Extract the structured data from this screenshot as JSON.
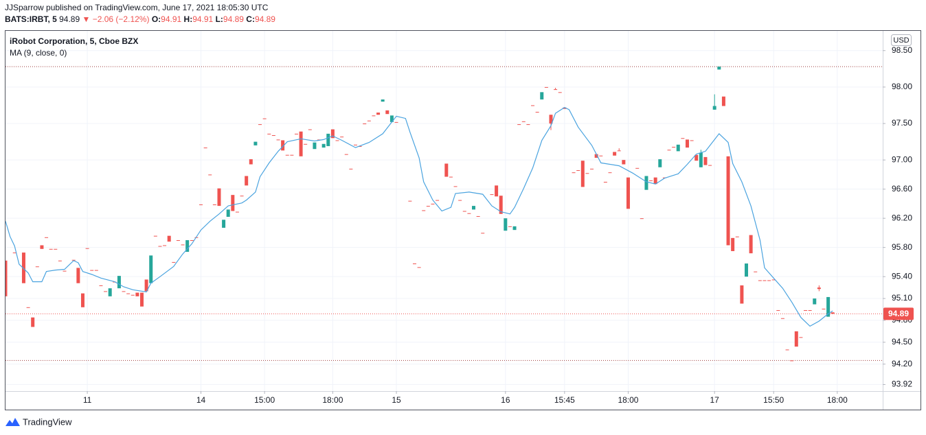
{
  "header": {
    "author": "JJSparrow",
    "published": "published on TradingView.com, June 17, 2021 18:05:30 UTC",
    "symbol": "BATS:IRBT, 5",
    "price": "94.89",
    "arrow": "▼",
    "change": "−2.06 (−2.12%)",
    "ohlc": [
      {
        "label": "O:",
        "value": "94.91"
      },
      {
        "label": "H:",
        "value": "94.91"
      },
      {
        "label": "L:",
        "value": "94.89"
      },
      {
        "label": "C:",
        "value": "94.89"
      }
    ]
  },
  "chart_data": {
    "type": "candlestick",
    "title": "iRobot Corporation, 5, Cboe BZX",
    "currency": "USD",
    "price_label": "94.89",
    "up_color": "#26a69a",
    "down_color": "#ef5350",
    "grid": true,
    "xlim": [
      0,
      193
    ],
    "ylim": [
      93.83,
      98.78
    ],
    "xticks": [
      {
        "value": 18,
        "label": "11"
      },
      {
        "value": 43,
        "label": "14"
      },
      {
        "value": 57,
        "label": "15:00"
      },
      {
        "value": 72,
        "label": "18:00"
      },
      {
        "value": 86,
        "label": "15"
      },
      {
        "value": 110,
        "label": "16"
      },
      {
        "value": 123,
        "label": "15:45"
      },
      {
        "value": 137,
        "label": "18:00"
      },
      {
        "value": 156,
        "label": "17"
      },
      {
        "value": 169,
        "label": "15:50"
      },
      {
        "value": 183,
        "label": "18:00"
      }
    ],
    "yticks": [
      93.92,
      {
        "value": 94.2,
        "label": "94.20"
      },
      {
        "value": 94.5,
        "label": "94.50"
      },
      {
        "value": 94.8,
        "label": "94.80"
      },
      {
        "value": 95.1,
        "label": "95.10"
      },
      {
        "value": 95.4,
        "label": "95.40"
      },
      {
        "value": 95.8,
        "label": "95.80"
      },
      {
        "value": 96.2,
        "label": "96.20"
      },
      {
        "value": 96.6,
        "label": "96.60"
      },
      {
        "value": 97,
        "label": "97.00"
      },
      {
        "value": 97.5,
        "label": "97.50"
      },
      {
        "value": 98,
        "label": "98.00"
      },
      {
        "value": 98.5,
        "label": "98.50"
      }
    ],
    "x": [
      0,
      2,
      4,
      5,
      6,
      7,
      8,
      9,
      10,
      11,
      12,
      13,
      15,
      16,
      17,
      18,
      19,
      20,
      21,
      22,
      23,
      24,
      25,
      26,
      27,
      28,
      29,
      30,
      31,
      32,
      33,
      34,
      35,
      36,
      37,
      38,
      39,
      40,
      41,
      42,
      43,
      44,
      45,
      46,
      47,
      48,
      49,
      50,
      51,
      52,
      53,
      54,
      55,
      56,
      57,
      58,
      59,
      60,
      61,
      62,
      63,
      64,
      65,
      66,
      67,
      68,
      69,
      70,
      71,
      72,
      73,
      74,
      75,
      76,
      77,
      78,
      79,
      80,
      81,
      82,
      83,
      84,
      85,
      86,
      89,
      90,
      91,
      92,
      93,
      94,
      95,
      97,
      98,
      99,
      100,
      101,
      102,
      103,
      104,
      105,
      107,
      108,
      109,
      110,
      111,
      112,
      113,
      114,
      115,
      116,
      117,
      118,
      119,
      120,
      121,
      122,
      123,
      125,
      126,
      127,
      128,
      129,
      130,
      131,
      132,
      133,
      134,
      135,
      136,
      137,
      139,
      140,
      141,
      142,
      143,
      144,
      145,
      146,
      147,
      148,
      149,
      150,
      151,
      152,
      153,
      154,
      155,
      156,
      157,
      158,
      159,
      160,
      161,
      162,
      163,
      164,
      165,
      166,
      167,
      168,
      169,
      170,
      171,
      172,
      173,
      174,
      175,
      176,
      177,
      178,
      179,
      180,
      181,
      182
    ],
    "open": [
      95.62,
      95.73,
      95.73,
      94.98,
      94.84,
      95.54,
      95.83,
      95.94,
      95.78,
      95.78,
      95.62,
      95.48,
      95.63,
      95.52,
      95.17,
      95.79,
      95.49,
      95.49,
      95.28,
      95.2,
      95.13,
      95.33,
      95.24,
      95.2,
      95.17,
      95.15,
      95.18,
      95.18,
      95.36,
      95.31,
      95.96,
      95.82,
      95.83,
      95.96,
      95.6,
      95.9,
      95.84,
      95.74,
      95.9,
      95.94,
      96.39,
      97.17,
      96.8,
      96.39,
      96.61,
      96.07,
      96.22,
      96.52,
      96.29,
      96.51,
      96.78,
      97.01,
      97.2,
      97.49,
      97.57,
      97.36,
      97.34,
      97.28,
      97.27,
      97.07,
      97.07,
      97.36,
      97.39,
      97.22,
      97.42,
      97.15,
      97.28,
      97.17,
      97.19,
      97.42,
      97.27,
      97.32,
      97.08,
      96.88,
      97.21,
      97.19,
      97.5,
      97.54,
      97.61,
      97.65,
      97.8,
      97.68,
      97.52,
      97.52,
      96.44,
      95.58,
      95.53,
      96.31,
      96.37,
      96.4,
      96.45,
      96.95,
      96.77,
      96.64,
      96.45,
      96.3,
      96.27,
      96.32,
      96.23,
      96.0,
      96.53,
      96.65,
      96.51,
      96.03,
      96.09,
      96.04,
      97.49,
      97.53,
      97.49,
      97.75,
      97.66,
      97.83,
      98.0,
      97.62,
      97.97,
      97.93,
      97.72,
      96.83,
      96.86,
      96.99,
      96.82,
      96.88,
      97.08,
      97.06,
      96.7,
      96.83,
      97.11,
      97.13,
      97.0,
      96.76,
      96.89,
      96.2,
      96.59,
      96.72,
      96.76,
      96.9,
      96.76,
      97.14,
      97.18,
      97.12,
      97.3,
      97.28,
      97.27,
      97.07,
      96.9,
      97.04,
      96.93,
      97.69,
      98.24,
      97.87,
      97.05,
      95.93,
      95.95,
      95.28,
      95.4,
      95.97,
      95.47,
      95.35,
      95.35,
      95.35,
      95.36,
      94.94,
      94.83,
      94.4,
      94.25,
      94.65,
      94.57,
      94.94,
      94.94,
      95.02,
      95.25,
      94.96,
      94.85,
      94.91
    ],
    "high": [
      95.62,
      95.73,
      95.73,
      94.98,
      94.84,
      95.54,
      95.83,
      95.94,
      95.78,
      95.78,
      95.62,
      95.48,
      95.63,
      95.52,
      95.17,
      95.79,
      95.49,
      95.49,
      95.28,
      95.2,
      95.24,
      95.33,
      95.41,
      95.2,
      95.17,
      95.15,
      95.18,
      95.18,
      95.36,
      95.69,
      95.96,
      95.82,
      95.83,
      95.96,
      95.6,
      95.9,
      95.84,
      95.9,
      95.9,
      95.94,
      96.39,
      97.17,
      96.8,
      96.39,
      96.61,
      96.18,
      96.32,
      96.52,
      96.29,
      96.51,
      96.78,
      97.01,
      97.25,
      97.49,
      97.57,
      97.36,
      97.34,
      97.28,
      97.27,
      97.07,
      97.07,
      97.36,
      97.39,
      97.22,
      97.42,
      97.24,
      97.28,
      97.22,
      97.36,
      97.42,
      97.27,
      97.32,
      97.08,
      96.88,
      97.21,
      97.19,
      97.5,
      97.54,
      97.61,
      97.65,
      97.83,
      97.68,
      97.61,
      97.52,
      96.44,
      95.58,
      95.53,
      96.31,
      96.37,
      96.4,
      96.45,
      96.95,
      96.77,
      96.64,
      96.45,
      96.3,
      96.27,
      96.37,
      96.23,
      96.0,
      96.53,
      96.65,
      96.51,
      96.2,
      96.09,
      96.09,
      97.49,
      97.53,
      97.49,
      97.75,
      97.66,
      97.93,
      98.0,
      97.62,
      97.99,
      97.93,
      97.72,
      96.83,
      96.86,
      96.99,
      96.82,
      96.88,
      97.08,
      97.06,
      96.7,
      96.83,
      97.11,
      97.16,
      97.0,
      96.76,
      96.89,
      96.2,
      96.78,
      96.72,
      96.76,
      97.01,
      96.76,
      97.14,
      97.18,
      97.21,
      97.3,
      97.28,
      97.27,
      97.07,
      97.14,
      97.04,
      96.93,
      97.9,
      98.28,
      97.87,
      97.05,
      95.93,
      95.95,
      95.28,
      95.58,
      95.97,
      95.47,
      95.35,
      95.35,
      95.35,
      95.36,
      94.94,
      94.83,
      94.4,
      94.25,
      94.65,
      94.57,
      94.94,
      94.94,
      95.1,
      95.28,
      94.96,
      95.12,
      94.91
    ],
    "low": [
      95.13,
      95.73,
      95.31,
      94.98,
      94.71,
      95.54,
      95.78,
      95.94,
      95.78,
      95.78,
      95.62,
      95.48,
      95.63,
      95.31,
      94.98,
      95.79,
      95.49,
      95.49,
      95.28,
      95.2,
      95.13,
      95.33,
      95.24,
      95.2,
      95.17,
      95.15,
      95.13,
      94.99,
      95.2,
      95.31,
      95.96,
      95.82,
      95.83,
      95.88,
      95.6,
      95.9,
      95.84,
      95.74,
      95.9,
      95.94,
      96.39,
      97.17,
      96.8,
      96.39,
      96.37,
      96.07,
      96.22,
      96.3,
      96.29,
      96.51,
      96.65,
      96.94,
      97.2,
      97.49,
      97.57,
      97.36,
      97.34,
      97.28,
      97.13,
      97.07,
      97.07,
      97.36,
      97.05,
      97.22,
      97.42,
      97.15,
      97.28,
      97.17,
      97.19,
      97.3,
      97.27,
      97.32,
      97.08,
      96.88,
      97.21,
      97.19,
      97.5,
      97.54,
      97.61,
      97.62,
      97.8,
      97.63,
      97.52,
      97.52,
      96.44,
      95.58,
      95.53,
      96.31,
      96.37,
      96.4,
      96.45,
      96.77,
      96.77,
      96.64,
      96.45,
      96.3,
      96.27,
      96.32,
      96.23,
      96.0,
      96.53,
      96.5,
      96.26,
      96.03,
      96.09,
      96.04,
      97.49,
      97.53,
      97.49,
      97.75,
      97.66,
      97.83,
      98.0,
      97.41,
      97.97,
      97.93,
      97.7,
      96.83,
      96.86,
      96.63,
      96.82,
      96.88,
      97.03,
      97.06,
      96.7,
      96.83,
      97.06,
      97.13,
      96.94,
      96.33,
      96.89,
      96.2,
      96.59,
      96.72,
      96.67,
      96.9,
      96.76,
      97.14,
      97.18,
      97.12,
      97.3,
      97.17,
      97.27,
      96.99,
      96.9,
      96.93,
      96.93,
      97.69,
      98.24,
      97.74,
      95.83,
      95.75,
      95.95,
      95.03,
      95.4,
      95.72,
      95.47,
      95.35,
      95.35,
      95.35,
      95.36,
      94.94,
      94.83,
      94.4,
      94.25,
      94.44,
      94.57,
      94.94,
      94.94,
      95.02,
      95.2,
      94.96,
      94.85,
      94.89
    ],
    "close": [
      95.13,
      95.73,
      95.31,
      94.98,
      94.71,
      95.54,
      95.78,
      95.94,
      95.78,
      95.78,
      95.62,
      95.48,
      95.63,
      95.31,
      94.98,
      95.79,
      95.49,
      95.49,
      95.28,
      95.2,
      95.24,
      95.33,
      95.41,
      95.2,
      95.17,
      95.15,
      95.13,
      94.99,
      95.2,
      95.69,
      95.96,
      95.82,
      95.83,
      95.88,
      95.6,
      95.9,
      95.84,
      95.9,
      95.9,
      95.94,
      96.39,
      97.17,
      96.8,
      96.39,
      96.37,
      96.18,
      96.32,
      96.3,
      96.29,
      96.51,
      96.65,
      96.94,
      97.25,
      97.49,
      97.57,
      97.36,
      97.34,
      97.28,
      97.13,
      97.07,
      97.07,
      97.36,
      97.05,
      97.22,
      97.42,
      97.24,
      97.28,
      97.22,
      97.36,
      97.3,
      97.27,
      97.32,
      97.08,
      96.88,
      97.21,
      97.19,
      97.5,
      97.54,
      97.61,
      97.62,
      97.83,
      97.63,
      97.61,
      97.52,
      96.44,
      95.58,
      95.53,
      96.31,
      96.37,
      96.4,
      96.45,
      96.77,
      96.77,
      96.64,
      96.45,
      96.3,
      96.27,
      96.37,
      96.23,
      96.0,
      96.53,
      96.5,
      96.26,
      96.2,
      96.09,
      96.09,
      97.49,
      97.53,
      97.49,
      97.75,
      97.66,
      97.93,
      98.0,
      97.5,
      97.97,
      97.93,
      97.7,
      96.83,
      96.86,
      96.63,
      96.82,
      96.88,
      97.03,
      97.06,
      96.7,
      96.83,
      97.06,
      97.13,
      96.94,
      96.33,
      96.89,
      96.2,
      96.78,
      96.72,
      96.67,
      97.01,
      96.76,
      97.14,
      97.18,
      97.21,
      97.3,
      97.17,
      97.27,
      96.99,
      97.1,
      96.93,
      96.93,
      97.74,
      98.28,
      97.74,
      95.83,
      95.75,
      95.95,
      95.03,
      95.58,
      95.72,
      95.47,
      95.35,
      95.35,
      95.35,
      95.36,
      94.94,
      94.83,
      94.4,
      94.25,
      94.44,
      94.57,
      94.94,
      94.94,
      95.1,
      95.23,
      94.96,
      95.12,
      94.89
    ],
    "ma": {
      "name": "MA (9, close, 0)",
      "color": "#4aa3df",
      "x": [
        0,
        1,
        2,
        3,
        5,
        6,
        8,
        9,
        11,
        13,
        15,
        16,
        17,
        19,
        21,
        24,
        26,
        28,
        31,
        32,
        34,
        37,
        39,
        41,
        43,
        45,
        47,
        49,
        52,
        53,
        55,
        56,
        58,
        60,
        62,
        65,
        68,
        70,
        72,
        74,
        77,
        80,
        83,
        85,
        86,
        88,
        89,
        91,
        92,
        94,
        96,
        98,
        99,
        102,
        105,
        107,
        109,
        111,
        112,
        114,
        116,
        118,
        120,
        121,
        123,
        124,
        126,
        129,
        131,
        133,
        135,
        138,
        141,
        143,
        145,
        148,
        150,
        152,
        154,
        155,
        157,
        159,
        160,
        162,
        164,
        166,
        167,
        169,
        171,
        173,
        175,
        177,
        179,
        181,
        182
      ],
      "values": [
        96.16,
        95.95,
        95.82,
        95.57,
        95.45,
        95.33,
        95.33,
        95.47,
        95.49,
        95.5,
        95.62,
        95.59,
        95.47,
        95.43,
        95.38,
        95.33,
        95.26,
        95.22,
        95.19,
        95.31,
        95.4,
        95.54,
        95.71,
        95.85,
        96.04,
        96.16,
        96.26,
        96.37,
        96.41,
        96.45,
        96.56,
        96.77,
        96.96,
        97.12,
        97.25,
        97.29,
        97.26,
        97.28,
        97.33,
        97.27,
        97.17,
        97.24,
        97.36,
        97.52,
        97.6,
        97.57,
        97.38,
        97.03,
        96.7,
        96.45,
        96.3,
        96.35,
        96.54,
        96.56,
        96.53,
        96.37,
        96.29,
        96.26,
        96.35,
        96.61,
        96.89,
        97.27,
        97.47,
        97.64,
        97.72,
        97.69,
        97.45,
        97.2,
        96.96,
        96.94,
        96.92,
        96.82,
        96.7,
        96.67,
        96.75,
        96.81,
        96.94,
        97.08,
        97.12,
        97.2,
        97.36,
        97.24,
        96.95,
        96.7,
        96.37,
        95.9,
        95.52,
        95.38,
        95.24,
        95.05,
        94.84,
        94.72,
        94.79,
        94.89,
        94.93
      ]
    }
  },
  "footer": {
    "brand": "TradingView"
  }
}
